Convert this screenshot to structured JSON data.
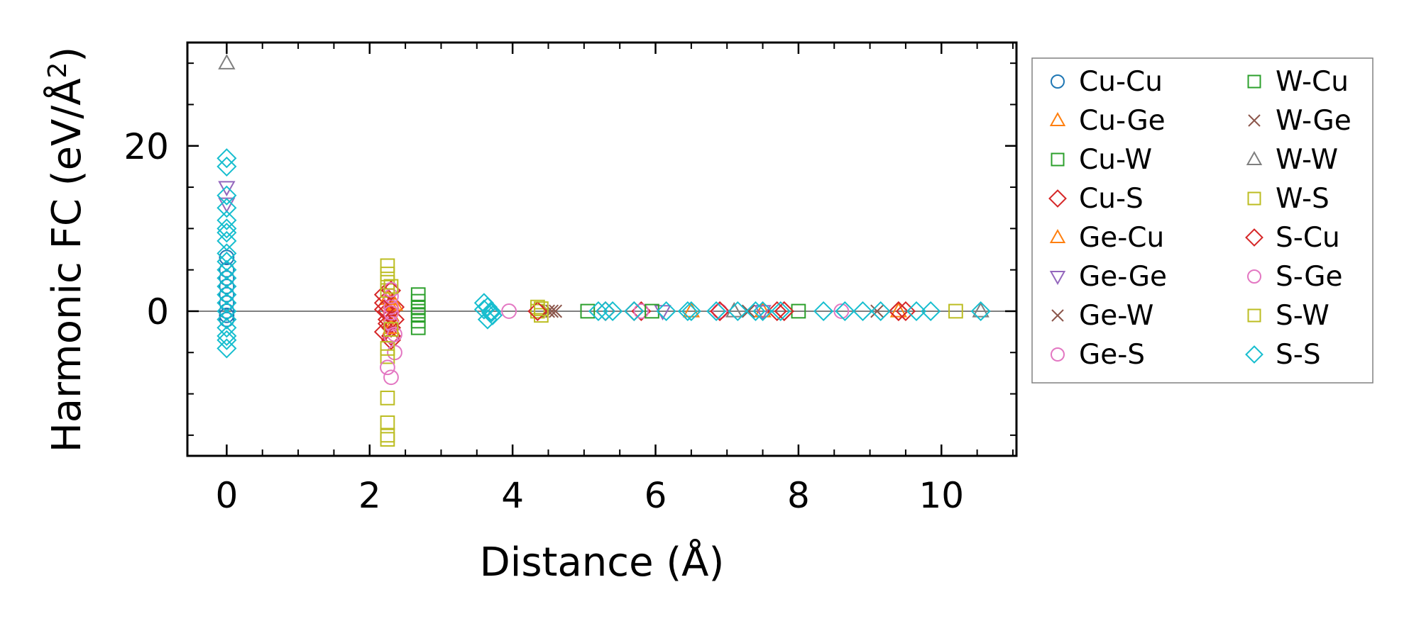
{
  "chart_data": {
    "type": "scatter",
    "title": "",
    "xlabel": "Distance (Å)",
    "ylabel_main": "Harmonic FC (eV/Å",
    "ylabel_sup": "2",
    "ylabel_close": ")",
    "xlim": [
      -0.55,
      11.05
    ],
    "ylim": [
      -17.5,
      32.5
    ],
    "xticks": [
      0,
      2,
      4,
      6,
      8,
      10
    ],
    "xtick_labels": [
      "0",
      "2",
      "4",
      "6",
      "8",
      "10"
    ],
    "yticks": [
      0,
      20
    ],
    "ytick_labels": [
      "0",
      "20"
    ],
    "legend_position": "outside-right",
    "legend_columns": 2,
    "series": [
      {
        "name": "Cu-Cu",
        "marker": "circle",
        "color": "#1f77b4",
        "x": [
          0,
          0,
          0,
          0,
          0,
          0,
          0,
          0,
          0
        ],
        "y": [
          6.5,
          5,
          4,
          3,
          2,
          1,
          0,
          -0.5,
          -1
        ]
      },
      {
        "name": "Cu-Ge",
        "marker": "triangle-up",
        "color": "#ff7f0e",
        "x": [
          2.3,
          2.3,
          2.3,
          2.3,
          6.5,
          7.5,
          9.4
        ],
        "y": [
          0.5,
          -0.5,
          -1.5,
          1,
          0,
          0,
          0
        ]
      },
      {
        "name": "Cu-W",
        "marker": "square",
        "color": "#2ca02c",
        "x": [
          2.68,
          2.68,
          2.68,
          2.68,
          2.68,
          2.68,
          2.68
        ],
        "y": [
          2,
          1.2,
          0.5,
          0,
          -0.5,
          -1.2,
          -2
        ]
      },
      {
        "name": "Cu-S",
        "marker": "diamond",
        "color": "#d62728",
        "x": [
          2.2,
          2.2,
          2.25,
          2.25,
          2.3,
          2.3,
          2.35,
          2.35,
          2.2,
          2.3,
          5.3,
          5.7,
          5.8,
          6.9,
          7.7,
          7.8,
          9.4,
          9.5
        ],
        "y": [
          2,
          1,
          0,
          -1,
          -2,
          -3,
          -1,
          0.5,
          -2.5,
          -3.5,
          0,
          0,
          0,
          0,
          0,
          0,
          0,
          0
        ]
      },
      {
        "name": "Ge-Cu",
        "marker": "triangle-up",
        "color": "#ff7f0e",
        "x": [
          2.25,
          2.3,
          2.35
        ],
        "y": [
          1.5,
          -2,
          0.8
        ]
      },
      {
        "name": "Ge-Ge",
        "marker": "triangle-down",
        "color": "#9467bd",
        "x": [
          0,
          0,
          6.1,
          7.5
        ],
        "y": [
          15,
          13,
          0,
          0
        ]
      },
      {
        "name": "Ge-W",
        "marker": "x",
        "color": "#8c564b",
        "x": [
          4.6,
          4.5,
          7.3
        ],
        "y": [
          0,
          0,
          0
        ]
      },
      {
        "name": "Ge-S",
        "marker": "circle",
        "color": "#e377c2",
        "x": [
          2.3,
          2.3,
          2.3,
          2.3,
          2.35,
          2.3,
          3.95,
          5.8,
          6.9,
          8.6
        ],
        "y": [
          1.8,
          0.5,
          -1.5,
          -3,
          -5,
          -8,
          0,
          0,
          0,
          0
        ]
      },
      {
        "name": "W-Cu",
        "marker": "square",
        "color": "#2ca02c",
        "x": [
          5.05,
          5.95,
          8
        ],
        "y": [
          0,
          0,
          0
        ]
      },
      {
        "name": "W-Ge",
        "marker": "x",
        "color": "#8c564b",
        "x": [
          4.55,
          9.1
        ],
        "y": [
          0,
          0
        ]
      },
      {
        "name": "W-W",
        "marker": "triangle-up",
        "color": "#7f7f7f",
        "x": [
          0,
          7.1,
          10.55
        ],
        "y": [
          30,
          0,
          0
        ]
      },
      {
        "name": "W-S",
        "marker": "square",
        "color": "#bcbd22",
        "x": [
          2.25,
          2.25,
          2.25,
          2.25,
          2.25,
          2.25,
          2.25,
          2.25,
          2.25,
          2.25,
          4.35,
          4.4,
          4.35,
          10.2
        ],
        "y": [
          5.5,
          4.5,
          3.5,
          2.5,
          -4.5,
          -5.5,
          -10.5,
          -13.5,
          -15,
          -15.5,
          0,
          -0.5,
          0.5,
          0
        ]
      },
      {
        "name": "S-Cu",
        "marker": "diamond",
        "color": "#d62728",
        "x": [
          2.25,
          2.3,
          2.2,
          4.35,
          6.9,
          7.8,
          9.4
        ],
        "y": [
          -1.5,
          2.5,
          0.2,
          0,
          0,
          0,
          0
        ]
      },
      {
        "name": "S-Ge",
        "marker": "circle",
        "color": "#e377c2",
        "x": [
          2.3,
          2.3,
          2.35,
          2.25
        ],
        "y": [
          2.6,
          -0.2,
          -2.8,
          -6.8
        ]
      },
      {
        "name": "S-W",
        "marker": "square",
        "color": "#bcbd22",
        "x": [
          2.3,
          2.3,
          4.4
        ],
        "y": [
          3,
          -2.2,
          0.3
        ]
      },
      {
        "name": "S-S",
        "marker": "diamond",
        "color": "#17becf",
        "x": [
          0,
          0,
          0,
          0,
          0,
          0,
          0,
          0,
          0,
          0,
          0,
          0,
          0,
          0,
          0,
          0,
          0,
          0,
          0,
          0,
          0,
          3.6,
          3.65,
          3.7,
          3.72,
          3.65,
          3.6,
          3.7,
          5.2,
          5.3,
          5.4,
          5.7,
          6.15,
          6.45,
          6.5,
          6.85,
          7.15,
          7.4,
          7.5,
          7.75,
          8.35,
          8.65,
          8.9,
          9.15,
          9.65,
          9.85,
          10.55
        ],
        "y": [
          18.5,
          17.5,
          14,
          12.5,
          11,
          10,
          9.5,
          8.5,
          7,
          5,
          3,
          2,
          1,
          0,
          -1,
          -2,
          -3,
          -3.5,
          -4.5,
          4,
          6,
          1,
          0.5,
          0,
          -0.5,
          -1,
          0.2,
          -0.2,
          0,
          0,
          0,
          0,
          0,
          0,
          0,
          0,
          0,
          0,
          0,
          0,
          0,
          0,
          0,
          0,
          0,
          0,
          0
        ]
      }
    ]
  }
}
